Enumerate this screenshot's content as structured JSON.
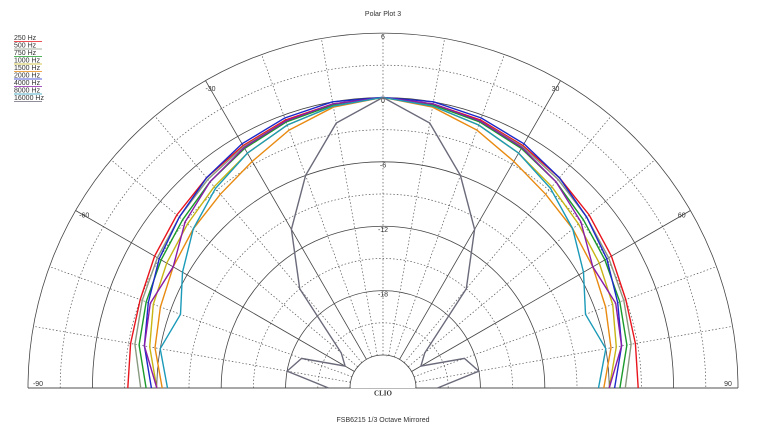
{
  "chart_data": {
    "type": "polar",
    "title": "Polar Plot 3",
    "brand": "CLIO",
    "subtitle": "FSB6215  1/3 Octave  Mirrored",
    "theta": [
      -90,
      -80,
      -70,
      -60,
      -50,
      -40,
      -30,
      -20,
      -10,
      0,
      10,
      20,
      30,
      40,
      50,
      60,
      70,
      80,
      90
    ],
    "thetaticks": [
      -90,
      -60,
      -30,
      30,
      60,
      90
    ],
    "thetaminorticks": [
      -80,
      -70,
      -50,
      -40,
      -20,
      -10,
      0,
      10,
      20,
      40,
      50,
      70,
      80
    ],
    "rlim": [
      -24,
      6
    ],
    "rticks": [
      -24,
      -18,
      -12,
      -6,
      0,
      6
    ],
    "rminorticks": [
      -21,
      -15,
      -9,
      -3,
      3
    ],
    "series": [
      {
        "name": "250 Hz",
        "color": "#e8141c",
        "values": [
          -3.3,
          -3.2,
          -3,
          -2.5,
          -2,
          -1.5,
          -1,
          -0.5,
          -0.2,
          0,
          -0.2,
          -0.5,
          -1,
          -1.5,
          -2,
          -2.5,
          -3,
          -3.2,
          -3.3
        ]
      },
      {
        "name": "500 Hz",
        "color": "#8a9a80",
        "values": [
          -4.5,
          -3.6,
          -3.2,
          -2.8,
          -2.3,
          -1.7,
          -1.1,
          -0.6,
          -0.3,
          0,
          -0.3,
          -0.6,
          -1.1,
          -1.7,
          -2.3,
          -2.8,
          -3.2,
          -3.6,
          -4.5
        ]
      },
      {
        "name": "750 Hz",
        "color": "#1a9a2a",
        "values": [
          -5,
          -4,
          -3.6,
          -3.2,
          -2.7,
          -2,
          -1.3,
          -0.7,
          -0.3,
          0,
          -0.3,
          -0.7,
          -1.3,
          -2,
          -2.7,
          -3.2,
          -3.6,
          -4,
          -5
        ]
      },
      {
        "name": "1000 Hz",
        "color": "#c8b414",
        "values": [
          -6,
          -5,
          -4.3,
          -3.8,
          -3.3,
          -2.6,
          -1.8,
          -1,
          -0.4,
          0,
          -0.4,
          -1,
          -1.8,
          -2.6,
          -3.3,
          -3.8,
          -4.3,
          -5,
          -6
        ]
      },
      {
        "name": "1500 Hz",
        "color": "#e88a10",
        "values": [
          -6.5,
          -5.5,
          -5,
          -4.5,
          -4,
          -3.5,
          -2.7,
          -1.5,
          -0.5,
          0,
          -0.5,
          -1.5,
          -2.7,
          -3.5,
          -4,
          -4.5,
          -5,
          -5.5,
          -6.5
        ]
      },
      {
        "name": "2000 Hz",
        "color": "#1c28c8",
        "values": [
          -5.5,
          -4.5,
          -3.8,
          -3,
          -2.3,
          -1.5,
          -0.8,
          -0.3,
          0,
          0,
          0,
          -0.3,
          -0.8,
          -1.5,
          -2.3,
          -3,
          -3.8,
          -4.5,
          -5.5
        ]
      },
      {
        "name": "4000 Hz",
        "color": "#8a1ca8",
        "values": [
          -6,
          -4.5,
          -4,
          -4.5,
          -3,
          -2,
          -1.2,
          -0.6,
          -0.2,
          0,
          -0.2,
          -0.6,
          -1.2,
          -2,
          -3,
          -4.5,
          -4,
          -4.5,
          -6
        ]
      },
      {
        "name": "8000 Hz",
        "color": "#1a9ab8",
        "values": [
          -7,
          -6,
          -7,
          -5.5,
          -4,
          -2.8,
          -1.8,
          -1,
          -0.4,
          0,
          -0.4,
          -1,
          -1.8,
          -2.8,
          -4,
          -5.5,
          -7,
          -6,
          -7
        ]
      },
      {
        "name": "16000 Hz",
        "color": "#6a6a7a",
        "values": [
          -22,
          -18,
          -19,
          -23,
          -22,
          -15,
          -10,
          -6,
          -2,
          0,
          -2,
          -6,
          -10,
          -15,
          -22,
          -23,
          -19,
          -18,
          -22
        ]
      }
    ]
  }
}
